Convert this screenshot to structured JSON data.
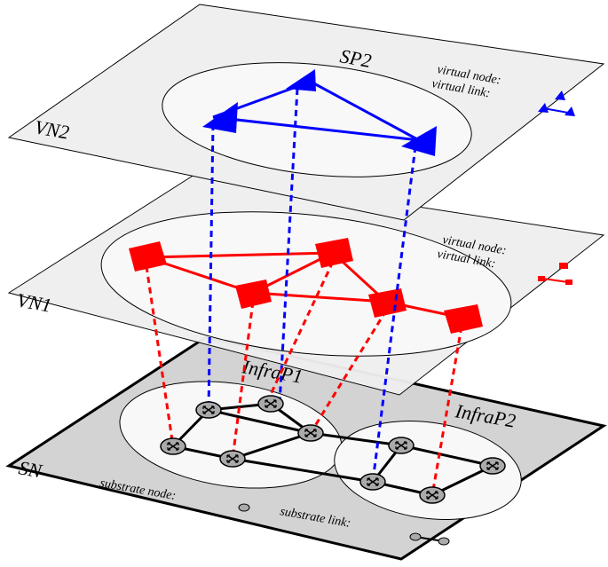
{
  "layers": {
    "vn2": {
      "label": "VN2",
      "provider": "SP2",
      "legend": {
        "node": "virtual node:",
        "link": "virtual link:"
      }
    },
    "vn1": {
      "label": "VN1",
      "legend": {
        "node": "virtual node:",
        "link": "virtual link:"
      }
    },
    "sn": {
      "label": "SN",
      "providers": [
        "InfraP1",
        "InfraP2"
      ],
      "legend": {
        "node": "substrate node:",
        "link": "substrate link:"
      }
    }
  }
}
